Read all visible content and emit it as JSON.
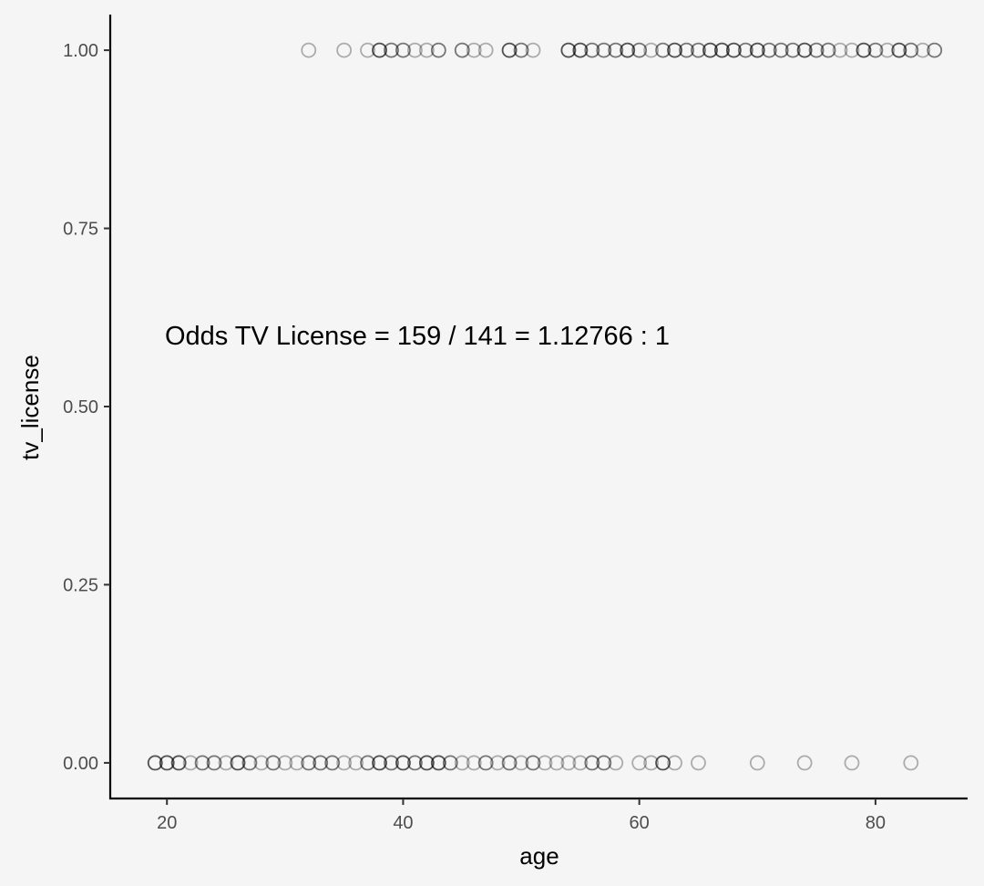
{
  "chart_data": {
    "type": "scatter",
    "title": "",
    "xlabel": "age",
    "ylabel": "tv_license",
    "xlim": [
      15.2,
      87.8
    ],
    "ylim": [
      -0.05,
      1.05
    ],
    "x_ticks": [
      20,
      40,
      60,
      80
    ],
    "x_tick_labels": [
      "20",
      "40",
      "60",
      "80"
    ],
    "y_ticks": [
      0,
      0.25,
      0.5,
      0.75,
      1
    ],
    "y_tick_labels": [
      "0.00",
      "0.25",
      "0.50",
      "0.75",
      "1.00"
    ],
    "grid": false,
    "legend": "none",
    "annotation": "Odds TV License = 159 / 141 = 1.12766 : 1",
    "annotation_position": [
      41.2,
      0.6
    ],
    "marker": "open-circle",
    "marker_color": "#000000",
    "marker_alpha": 0.3,
    "points_y0": [
      [
        19,
        3
      ],
      [
        20,
        3
      ],
      [
        21,
        3
      ],
      [
        22,
        1
      ],
      [
        23,
        2
      ],
      [
        24,
        2
      ],
      [
        25,
        1
      ],
      [
        26,
        3
      ],
      [
        27,
        2
      ],
      [
        28,
        1
      ],
      [
        29,
        2
      ],
      [
        30,
        1
      ],
      [
        31,
        1
      ],
      [
        32,
        2
      ],
      [
        33,
        2
      ],
      [
        34,
        2
      ],
      [
        35,
        1
      ],
      [
        36,
        1
      ],
      [
        37,
        2
      ],
      [
        38,
        3
      ],
      [
        39,
        2
      ],
      [
        40,
        3
      ],
      [
        41,
        2
      ],
      [
        42,
        3
      ],
      [
        43,
        3
      ],
      [
        44,
        2
      ],
      [
        45,
        1
      ],
      [
        46,
        1
      ],
      [
        47,
        2
      ],
      [
        48,
        1
      ],
      [
        49,
        2
      ],
      [
        50,
        1
      ],
      [
        51,
        2
      ],
      [
        52,
        1
      ],
      [
        53,
        1
      ],
      [
        54,
        1
      ],
      [
        55,
        1
      ],
      [
        56,
        2
      ],
      [
        57,
        2
      ],
      [
        58,
        1
      ],
      [
        60,
        1
      ],
      [
        61,
        1
      ],
      [
        62,
        3
      ],
      [
        63,
        1
      ],
      [
        65,
        1
      ],
      [
        70,
        1
      ],
      [
        74,
        1
      ],
      [
        78,
        1
      ],
      [
        83,
        1
      ]
    ],
    "points_y1": [
      [
        32,
        1
      ],
      [
        35,
        1
      ],
      [
        37,
        1
      ],
      [
        38,
        3
      ],
      [
        39,
        2
      ],
      [
        40,
        2
      ],
      [
        41,
        1
      ],
      [
        42,
        1
      ],
      [
        43,
        2
      ],
      [
        45,
        2
      ],
      [
        46,
        1
      ],
      [
        47,
        1
      ],
      [
        49,
        3
      ],
      [
        50,
        2
      ],
      [
        51,
        1
      ],
      [
        54,
        3
      ],
      [
        55,
        3
      ],
      [
        56,
        2
      ],
      [
        57,
        2
      ],
      [
        58,
        2
      ],
      [
        59,
        3
      ],
      [
        60,
        2
      ],
      [
        61,
        1
      ],
      [
        62,
        2
      ],
      [
        63,
        3
      ],
      [
        64,
        2
      ],
      [
        65,
        2
      ],
      [
        66,
        3
      ],
      [
        67,
        3
      ],
      [
        68,
        3
      ],
      [
        69,
        2
      ],
      [
        70,
        3
      ],
      [
        71,
        2
      ],
      [
        72,
        2
      ],
      [
        73,
        2
      ],
      [
        74,
        3
      ],
      [
        75,
        2
      ],
      [
        76,
        2
      ],
      [
        77,
        1
      ],
      [
        78,
        1
      ],
      [
        79,
        3
      ],
      [
        80,
        2
      ],
      [
        81,
        1
      ],
      [
        82,
        3
      ],
      [
        83,
        2
      ],
      [
        84,
        1
      ],
      [
        85,
        2
      ]
    ]
  }
}
